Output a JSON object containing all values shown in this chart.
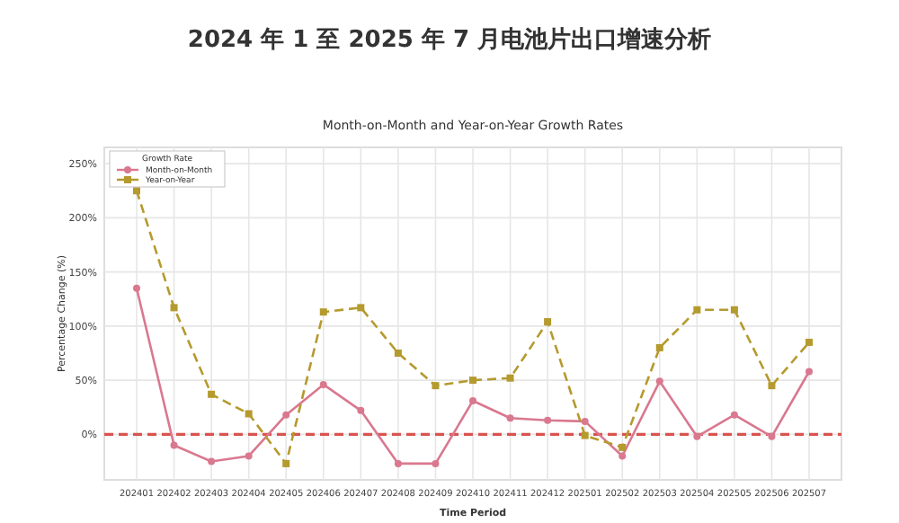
{
  "chart_data": {
    "type": "line",
    "title": "2024 年 1 至 2025 年 7 月电池片出口增速分析",
    "subtitle": "Month-on-Month and Year-on-Year Growth Rates",
    "xlabel": "Time Period",
    "ylabel": "Percentage Change (%)",
    "legend_title": "Growth Rate",
    "categories": [
      "202401",
      "202402",
      "202403",
      "202404",
      "202405",
      "202406",
      "202407",
      "202408",
      "202409",
      "202410",
      "202411",
      "202412",
      "202501",
      "202502",
      "202503",
      "202504",
      "202505",
      "202506",
      "202507"
    ],
    "series": [
      {
        "name": "Month-on-Month",
        "color": "#d9788f",
        "marker": "circle",
        "line_style": "solid",
        "values": [
          135,
          -10,
          -25,
          -20,
          18,
          46,
          22,
          -27,
          -27,
          31,
          15,
          13,
          12,
          -20,
          49,
          -2,
          18,
          -2,
          58
        ]
      },
      {
        "name": "Year-on-Year",
        "color": "#b59a2e",
        "marker": "square",
        "line_style": "dashed",
        "values": [
          225,
          117,
          37,
          19,
          -27,
          113,
          117,
          75,
          45,
          50,
          52,
          104,
          -1,
          -12,
          80,
          115,
          115,
          45,
          85
        ]
      }
    ],
    "ylim": [
      -42,
      265
    ],
    "yticks": [
      {
        "value": 0,
        "label": "0%"
      },
      {
        "value": 50,
        "label": "50%"
      },
      {
        "value": 100,
        "label": "100%"
      },
      {
        "value": 150,
        "label": "150%"
      },
      {
        "value": 200,
        "label": "200%"
      },
      {
        "value": 250,
        "label": "250%"
      }
    ],
    "ref_lines": [
      {
        "axis": "y",
        "value": 0,
        "color": "#d9534f",
        "line_style": "dashed"
      }
    ],
    "grid": true,
    "legend": "top left"
  }
}
